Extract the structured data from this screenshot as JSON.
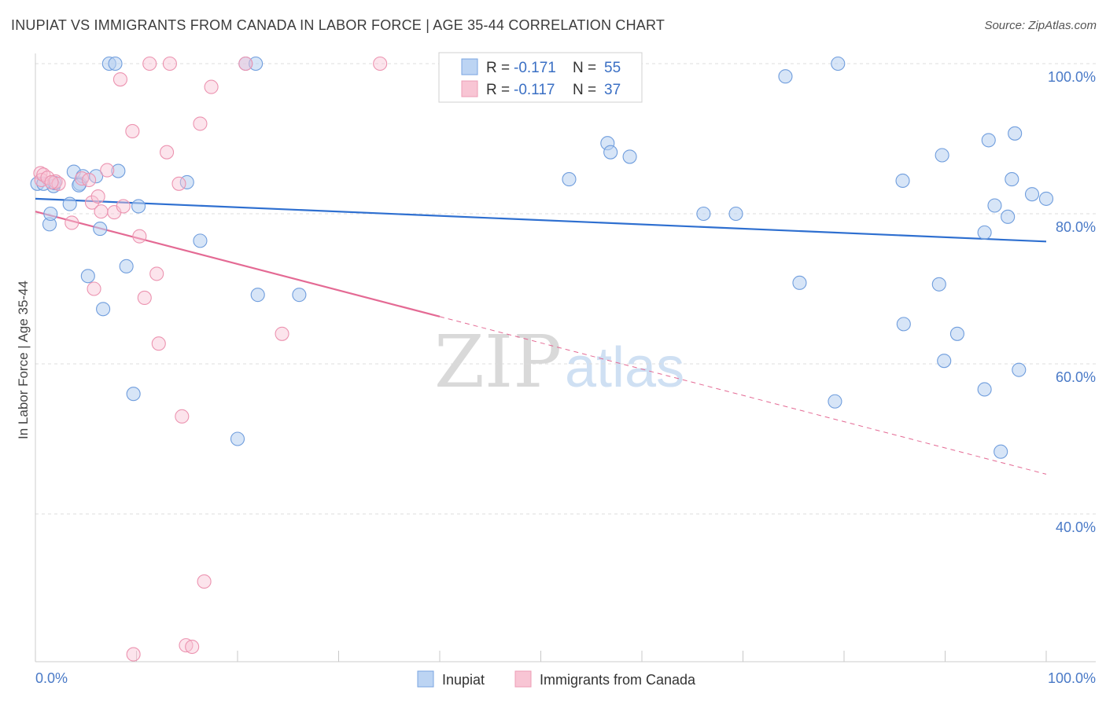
{
  "title": "INUPIAT VS IMMIGRANTS FROM CANADA IN LABOR FORCE | AGE 35-44 CORRELATION CHART",
  "source": "Source: ZipAtlas.com",
  "watermark": {
    "zip": "ZIP",
    "atlas": "atlas"
  },
  "legend": {
    "r_label": "R =",
    "n_label": "N =",
    "rows": [
      {
        "r": "-0.171",
        "n": "55"
      },
      {
        "r": "-0.117",
        "n": "37"
      }
    ]
  },
  "bottom_legend": [
    "Inupiat",
    "Immigrants from Canada"
  ],
  "chart_data": {
    "type": "scatter",
    "title": "INUPIAT VS IMMIGRANTS FROM CANADA IN LABOR FORCE | AGE 35-44 CORRELATION CHART",
    "xlabel": "",
    "ylabel": "In Labor Force | Age 35-44",
    "xlim": [
      0,
      100
    ],
    "ylim": [
      22,
      102
    ],
    "x_tick_labels": [
      "0.0%",
      "100.0%"
    ],
    "y_ticks": [
      40,
      60,
      80,
      100
    ],
    "y_tick_labels": [
      "40.0%",
      "60.0%",
      "80.0%",
      "100.0%"
    ],
    "colors": {
      "inupiat": "#5b8fd6",
      "canada": "#ec8fac",
      "inupiat_line": "#2e6fd0",
      "canada_line": "#e46a94"
    },
    "series": [
      {
        "name": "Inupiat",
        "R": -0.171,
        "N": 55,
        "trend": {
          "x0": 0,
          "y0": 82.0,
          "x1": 100,
          "y1": 76.3
        },
        "points": [
          [
            0.2,
            84.0
          ],
          [
            1.4,
            78.6
          ],
          [
            1.5,
            80.0
          ],
          [
            1.8,
            83.7
          ],
          [
            3.4,
            81.3
          ],
          [
            3.8,
            85.6
          ],
          [
            4.4,
            84.0
          ],
          [
            4.7,
            85.0
          ],
          [
            6.0,
            85.0
          ],
          [
            5.2,
            71.7
          ],
          [
            6.4,
            78.0
          ],
          [
            6.7,
            67.3
          ],
          [
            7.3,
            100.0
          ],
          [
            7.9,
            100.0
          ],
          [
            8.2,
            85.7
          ],
          [
            9.0,
            73.0
          ],
          [
            9.7,
            56.0
          ],
          [
            10.2,
            81.0
          ],
          [
            15.0,
            84.2
          ],
          [
            16.3,
            76.4
          ],
          [
            20.0,
            50.0
          ],
          [
            20.8,
            100.0
          ],
          [
            21.8,
            100.0
          ],
          [
            22.0,
            69.2
          ],
          [
            26.1,
            69.2
          ],
          [
            52.8,
            84.6
          ],
          [
            56.6,
            89.4
          ],
          [
            56.9,
            88.2
          ],
          [
            58.8,
            87.6
          ],
          [
            66.1,
            80.0
          ],
          [
            69.3,
            80.0
          ],
          [
            74.2,
            98.3
          ],
          [
            75.6,
            70.8
          ],
          [
            79.1,
            55.0
          ],
          [
            79.4,
            100.0
          ],
          [
            85.8,
            84.4
          ],
          [
            85.9,
            65.3
          ],
          [
            89.4,
            70.6
          ],
          [
            89.7,
            87.8
          ],
          [
            89.9,
            60.4
          ],
          [
            91.2,
            64.0
          ],
          [
            93.9,
            77.5
          ],
          [
            93.9,
            56.6
          ],
          [
            94.3,
            89.8
          ],
          [
            94.9,
            81.1
          ],
          [
            95.5,
            48.3
          ],
          [
            96.2,
            79.6
          ],
          [
            96.6,
            84.6
          ],
          [
            96.9,
            90.7
          ],
          [
            97.3,
            59.2
          ],
          [
            98.6,
            82.6
          ],
          [
            100.0,
            82.0
          ],
          [
            1.9,
            84.1
          ],
          [
            4.3,
            83.8
          ],
          [
            0.8,
            84.0
          ]
        ]
      },
      {
        "name": "Immigrants from Canada",
        "R": -0.117,
        "N": 37,
        "trend": {
          "x0": 0,
          "y0": 80.3,
          "x1": 100,
          "y1": 45.3,
          "solid_until_x": 40
        },
        "points": [
          [
            0.5,
            85.4
          ],
          [
            0.6,
            84.5
          ],
          [
            0.8,
            85.2
          ],
          [
            1.2,
            84.8
          ],
          [
            2.0,
            84.3
          ],
          [
            2.3,
            84.0
          ],
          [
            3.6,
            78.8
          ],
          [
            4.6,
            84.7
          ],
          [
            5.3,
            84.5
          ],
          [
            5.6,
            81.5
          ],
          [
            5.8,
            70.0
          ],
          [
            6.2,
            82.3
          ],
          [
            6.5,
            80.3
          ],
          [
            7.1,
            85.8
          ],
          [
            7.8,
            80.2
          ],
          [
            8.4,
            97.9
          ],
          [
            8.7,
            81.0
          ],
          [
            9.6,
            91.0
          ],
          [
            9.7,
            21.3
          ],
          [
            10.3,
            77.0
          ],
          [
            10.8,
            68.8
          ],
          [
            11.3,
            100.0
          ],
          [
            12.0,
            72.0
          ],
          [
            12.2,
            62.7
          ],
          [
            13.0,
            88.2
          ],
          [
            13.3,
            100.0
          ],
          [
            14.2,
            84.0
          ],
          [
            14.5,
            53.0
          ],
          [
            14.9,
            22.5
          ],
          [
            15.5,
            22.3
          ],
          [
            16.3,
            92.0
          ],
          [
            16.7,
            31.0
          ],
          [
            17.4,
            96.9
          ],
          [
            20.8,
            100.0
          ],
          [
            24.4,
            64.0
          ],
          [
            34.1,
            100.0
          ],
          [
            1.6,
            84.2
          ]
        ]
      }
    ]
  }
}
